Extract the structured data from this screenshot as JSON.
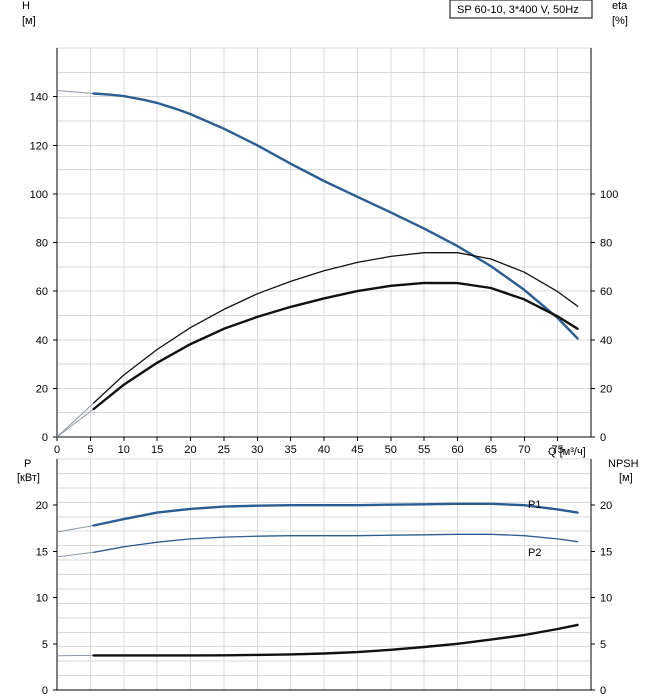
{
  "colors": {
    "blue": "#2a5d91",
    "black": "#111111",
    "extension": "#8c97a6",
    "grid": "#d9d9d9"
  },
  "chart_data": [
    {
      "type": "line",
      "title_box": "SP 60-10, 3*400 V, 50Hz",
      "left_axis": {
        "label_top": "H",
        "label_unit": "[м]",
        "ylim": [
          0,
          160
        ],
        "ticks": [
          0,
          20,
          40,
          60,
          80,
          100,
          120,
          140
        ]
      },
      "right_axis": {
        "label_top": "eta",
        "label_unit": "[%]",
        "ylim": [
          0,
          160
        ],
        "ticks": [
          0,
          20,
          40,
          60,
          80,
          100
        ]
      },
      "x_axis": {
        "label": "Q [м³/ч]",
        "xlim": [
          0,
          80
        ],
        "ticks": [
          0,
          5,
          10,
          15,
          20,
          25,
          30,
          35,
          40,
          45,
          50,
          55,
          60,
          65,
          70,
          75
        ]
      },
      "grid": true,
      "series": [
        {
          "color": "blue",
          "axis": "left",
          "width": 2.4,
          "extension": [
            [
              0,
              142.5
            ],
            [
              5.5,
              141.3
            ]
          ],
          "x": [
            5.5,
            8,
            10,
            13,
            15,
            18,
            20,
            25,
            30,
            35,
            40,
            45,
            50,
            55,
            60,
            65,
            70,
            75,
            78
          ],
          "y": [
            141.3,
            140.8,
            140.2,
            138.7,
            137.4,
            134.8,
            132.8,
            126.8,
            120.0,
            112.4,
            105.3,
            98.8,
            92.4,
            85.7,
            78.5,
            70.3,
            60.5,
            49.0,
            40.5
          ]
        },
        {
          "color": "black",
          "axis": "right",
          "width": 1.3,
          "extension": [
            [
              0,
              0
            ],
            [
              5.5,
              14
            ]
          ],
          "x": [
            5.5,
            10,
            15,
            20,
            25,
            30,
            35,
            40,
            45,
            50,
            55,
            60,
            65,
            70,
            75,
            78
          ],
          "y": [
            14.0,
            25.5,
            36.0,
            45.0,
            52.5,
            58.9,
            64.0,
            68.4,
            71.8,
            74.3,
            75.8,
            75.8,
            73.2,
            67.8,
            59.8,
            53.8
          ]
        },
        {
          "color": "black",
          "axis": "left",
          "width": 2.4,
          "extension": [
            [
              0,
              0
            ],
            [
              5.5,
              11.5
            ]
          ],
          "x": [
            5.5,
            10,
            15,
            20,
            25,
            30,
            35,
            40,
            45,
            50,
            55,
            60,
            65,
            70,
            75,
            78
          ],
          "y": [
            11.5,
            21.5,
            30.5,
            38.2,
            44.5,
            49.4,
            53.5,
            57.0,
            60.0,
            62.2,
            63.4,
            63.3,
            61.3,
            56.6,
            49.6,
            44.5
          ]
        }
      ]
    },
    {
      "type": "line",
      "left_axis": {
        "label_top": "P",
        "label_unit": "[кВт]",
        "ylim": [
          0,
          25
        ],
        "ticks": [
          0,
          5,
          10,
          15,
          20
        ]
      },
      "right_axis": {
        "label_top": "NPSH",
        "label_unit": "[м]",
        "ylim": [
          0,
          25
        ],
        "ticks": [
          0,
          5,
          10,
          15,
          20
        ]
      },
      "x_axis": {
        "xlim": [
          0,
          80
        ]
      },
      "grid": true,
      "series": [
        {
          "name": "P1",
          "color": "blue",
          "axis": "left",
          "width": 2.4,
          "extension": [
            [
              0,
              17.1
            ],
            [
              5.5,
              17.8
            ]
          ],
          "x": [
            5.5,
            10,
            15,
            20,
            25,
            30,
            35,
            40,
            45,
            50,
            55,
            60,
            65,
            70,
            75,
            78
          ],
          "y": [
            17.8,
            18.5,
            19.2,
            19.6,
            19.85,
            19.95,
            20.0,
            20.0,
            20.0,
            20.05,
            20.1,
            20.15,
            20.15,
            20.0,
            19.55,
            19.2
          ]
        },
        {
          "name": "P2",
          "color": "blue",
          "axis": "left",
          "width": 1.3,
          "extension": [
            [
              0,
              14.4
            ],
            [
              5.5,
              14.9
            ]
          ],
          "x": [
            5.5,
            10,
            15,
            20,
            25,
            30,
            35,
            40,
            45,
            50,
            55,
            60,
            65,
            70,
            75,
            78
          ],
          "y": [
            14.9,
            15.5,
            16.0,
            16.35,
            16.55,
            16.65,
            16.7,
            16.7,
            16.7,
            16.75,
            16.8,
            16.85,
            16.85,
            16.7,
            16.35,
            16.05
          ]
        },
        {
          "color": "black",
          "axis": "right",
          "width": 2.4,
          "extension": [
            [
              0,
              3.7
            ],
            [
              5.5,
              3.75
            ]
          ],
          "x": [
            5.5,
            10,
            15,
            20,
            25,
            30,
            35,
            40,
            45,
            50,
            55,
            60,
            65,
            70,
            75,
            78
          ],
          "y": [
            3.75,
            3.75,
            3.75,
            3.75,
            3.76,
            3.8,
            3.85,
            3.95,
            4.1,
            4.35,
            4.65,
            5.0,
            5.45,
            5.95,
            6.6,
            7.05
          ]
        }
      ]
    }
  ]
}
